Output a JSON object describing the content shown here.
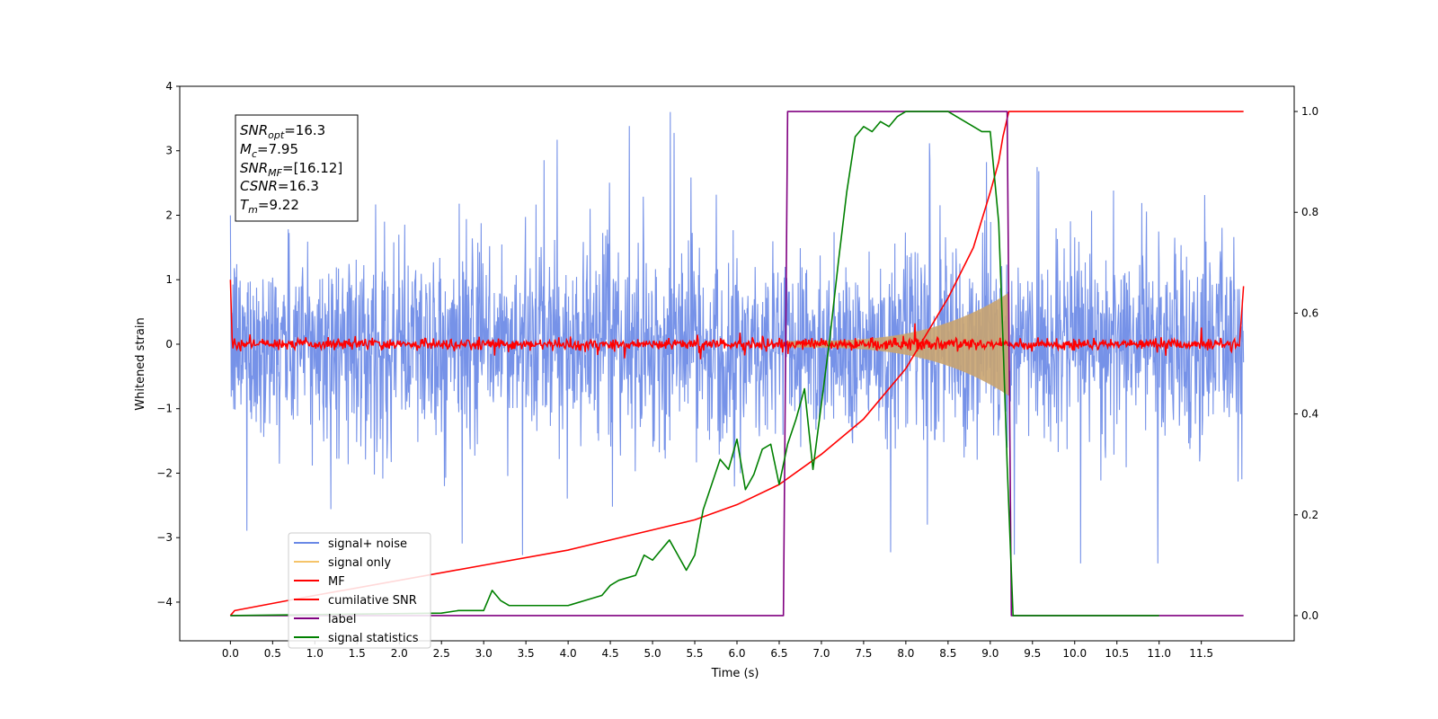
{
  "chart_data": {
    "type": "line",
    "title": "",
    "xlabel": "Time (s)",
    "ylabel": "Whitened strain",
    "xlim": [
      -0.6,
      12.6
    ],
    "ylim": [
      -4.6,
      4.0
    ],
    "ylim_right": [
      -0.05,
      1.05
    ],
    "x_ticks": [
      0.0,
      0.5,
      1.0,
      1.5,
      2.0,
      2.5,
      3.0,
      3.5,
      4.0,
      4.5,
      5.0,
      5.5,
      6.0,
      6.5,
      7.0,
      7.5,
      8.0,
      8.5,
      9.0,
      9.5,
      10.0,
      10.5,
      11.0,
      11.5
    ],
    "x_tick_labels": [
      "0.0",
      "0.5",
      "1.0",
      "1.5",
      "2.0",
      "2.5",
      "3.0",
      "3.5",
      "4.0",
      "4.5",
      "5.0",
      "5.5",
      "6.0",
      "6.5",
      "7.0",
      "7.5",
      "8.0",
      "8.5",
      "9.0",
      "9.5",
      "10.0",
      "10.5",
      "11.0",
      "11.5"
    ],
    "y_ticks": [
      4,
      3,
      2,
      1,
      0,
      -1,
      -2,
      -3,
      -4
    ],
    "y_tick_labels": [
      "4",
      "3",
      "2",
      "1",
      "0",
      "−1",
      "−2",
      "−3",
      "−4"
    ],
    "y_right_ticks": [
      1.0,
      0.8,
      0.6,
      0.4,
      0.2,
      0.0
    ],
    "y_right_tick_labels": [
      "1.0",
      "0.8",
      "0.6",
      "0.4",
      "0.2",
      "0.0"
    ],
    "grid": false,
    "legend_position": "lower-left",
    "noise": {
      "t_start": 0.0,
      "t_end": 12.0,
      "amplitude": 2.0
    },
    "signal": {
      "t_start": 6.6,
      "t_end": 9.22,
      "amplitude_start": 0.05,
      "amplitude_end": 0.8
    },
    "series": [
      {
        "name": "signal+ noise",
        "axis": "left",
        "color": "#6a89e6"
      },
      {
        "name": "signal only",
        "axis": "left",
        "color": "#f5c46a"
      },
      {
        "name": "MF",
        "axis": "left",
        "color": "#ff0000"
      },
      {
        "name": "cumilative SNR",
        "axis": "right",
        "color": "#ff0000",
        "x": [
          0.0,
          0.05,
          1.0,
          2.0,
          3.0,
          4.0,
          5.0,
          5.5,
          6.0,
          6.5,
          7.0,
          7.5,
          8.0,
          8.5,
          8.8,
          9.0,
          9.1,
          9.15,
          9.22,
          9.3,
          12.0
        ],
        "y": [
          0.0,
          0.01,
          0.04,
          0.07,
          0.1,
          0.13,
          0.17,
          0.19,
          0.22,
          0.26,
          0.32,
          0.39,
          0.49,
          0.63,
          0.73,
          0.84,
          0.9,
          0.95,
          1.0,
          1.0,
          1.0
        ]
      },
      {
        "name": "label",
        "axis": "right",
        "color": "#800080",
        "x": [
          0.0,
          6.55,
          6.6,
          9.2,
          9.25,
          12.0
        ],
        "y": [
          0.0,
          0.0,
          1.0,
          1.0,
          0.0,
          0.0
        ]
      },
      {
        "name": "signal statistics",
        "axis": "right",
        "color": "#008000",
        "x": [
          0.0,
          2.5,
          2.7,
          3.0,
          3.1,
          3.2,
          3.3,
          3.5,
          4.0,
          4.2,
          4.4,
          4.5,
          4.6,
          4.8,
          4.9,
          5.0,
          5.1,
          5.2,
          5.3,
          5.4,
          5.5,
          5.6,
          5.7,
          5.8,
          5.9,
          6.0,
          6.1,
          6.2,
          6.3,
          6.4,
          6.5,
          6.6,
          6.7,
          6.8,
          6.9,
          7.0,
          7.1,
          7.2,
          7.3,
          7.4,
          7.5,
          7.6,
          7.7,
          7.8,
          7.9,
          8.0,
          8.2,
          8.4,
          8.5,
          8.6,
          8.8,
          8.9,
          9.0,
          9.1,
          9.15,
          9.2,
          9.27,
          11.0
        ],
        "y": [
          0.0,
          0.005,
          0.01,
          0.01,
          0.05,
          0.03,
          0.02,
          0.02,
          0.02,
          0.03,
          0.04,
          0.06,
          0.07,
          0.08,
          0.12,
          0.11,
          0.13,
          0.15,
          0.12,
          0.09,
          0.12,
          0.21,
          0.26,
          0.31,
          0.29,
          0.35,
          0.25,
          0.28,
          0.33,
          0.34,
          0.26,
          0.34,
          0.39,
          0.45,
          0.29,
          0.42,
          0.55,
          0.7,
          0.84,
          0.95,
          0.97,
          0.96,
          0.98,
          0.97,
          0.99,
          1.0,
          1.0,
          1.0,
          1.0,
          0.99,
          0.97,
          0.96,
          0.96,
          0.78,
          0.55,
          0.3,
          0.0,
          0.0
        ]
      }
    ],
    "annotation": [
      {
        "base": "SNR",
        "sub": "opt",
        "value": "=16.3"
      },
      {
        "base": "M",
        "sub": "c",
        "value": "=7.95"
      },
      {
        "base": "SNR",
        "sub": "MF",
        "value": "=[16.12]"
      },
      {
        "base": "CSNR",
        "sub": "",
        "value": "=16.3"
      },
      {
        "base": "T",
        "sub": "m",
        "value": "=9.22"
      }
    ]
  }
}
